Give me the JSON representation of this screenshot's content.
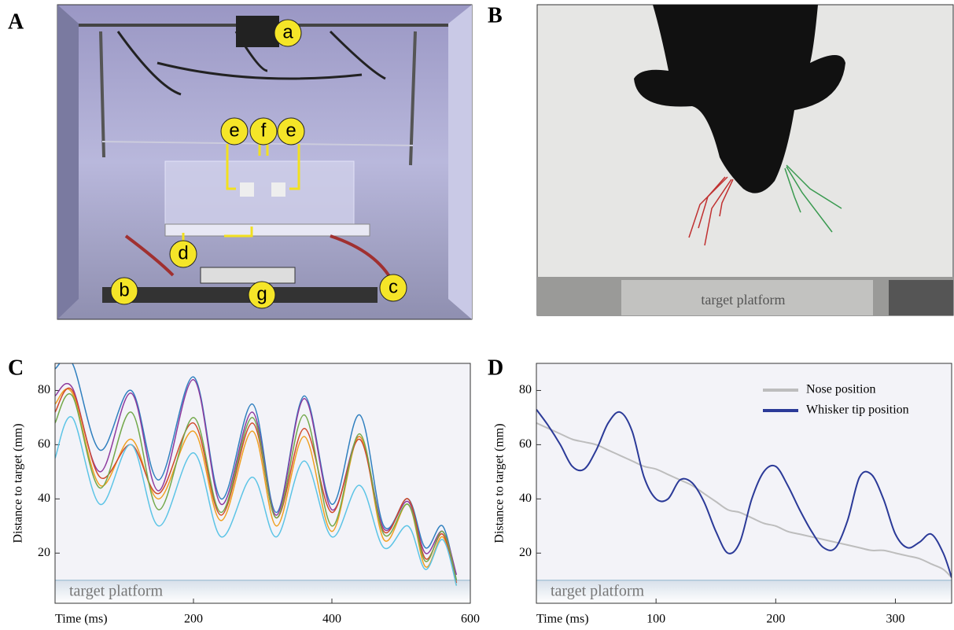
{
  "figure": {
    "panels": [
      "A",
      "B",
      "C",
      "D"
    ],
    "photo_a_labels": [
      "a",
      "b",
      "c",
      "d",
      "e",
      "f",
      "e",
      "g"
    ],
    "photo_b_label": "target platform"
  },
  "chart_data": [
    {
      "type": "line",
      "xlabel": "Time (ms)",
      "ylabel": "Distance to target  (mm)",
      "annotation": "target platform",
      "platform_level": 10,
      "xlim": [
        0,
        600
      ],
      "ylim": [
        1.5,
        90
      ],
      "xticks": [
        200,
        400,
        600
      ],
      "yticks": [
        20,
        40,
        60,
        80
      ],
      "x": [
        0,
        25,
        65,
        110,
        150,
        200,
        240,
        285,
        320,
        360,
        400,
        440,
        475,
        510,
        535,
        560,
        580
      ],
      "series": [
        {
          "color": "#2f7fbf",
          "values": [
            88,
            90,
            58,
            80,
            47,
            85,
            40,
            75,
            35,
            78,
            38,
            71,
            30,
            40,
            22,
            30,
            10
          ]
        },
        {
          "color": "#8e3a9e",
          "values": [
            78,
            81,
            50,
            79,
            43,
            84,
            38,
            72,
            34,
            77,
            36,
            63,
            29,
            39,
            20,
            28,
            12
          ]
        },
        {
          "color": "#f0a020",
          "values": [
            75,
            79,
            45,
            62,
            40,
            65,
            32,
            65,
            30,
            63,
            28,
            63,
            25,
            38,
            15,
            26,
            8
          ]
        },
        {
          "color": "#d04a2a",
          "values": [
            72,
            80,
            48,
            60,
            42,
            68,
            34,
            68,
            33,
            66,
            35,
            62,
            28,
            40,
            18,
            27,
            9
          ]
        },
        {
          "color": "#72a84a",
          "values": [
            68,
            78,
            44,
            72,
            36,
            70,
            35,
            70,
            33,
            71,
            30,
            64,
            27,
            38,
            17,
            28,
            10
          ]
        },
        {
          "color": "#5cc4e6",
          "values": [
            55,
            70,
            38,
            60,
            30,
            57,
            26,
            48,
            26,
            54,
            26,
            45,
            22,
            30,
            14,
            25,
            8
          ]
        }
      ]
    },
    {
      "type": "line",
      "xlabel": "Time (ms)",
      "ylabel": "Distance to target  (mm)",
      "annotation": "target platform",
      "platform_level": 10,
      "xlim": [
        0,
        347
      ],
      "ylim": [
        1.5,
        90
      ],
      "xticks": [
        100,
        200,
        300
      ],
      "yticks": [
        20,
        40,
        60,
        80
      ],
      "legend": "upper right",
      "x": [
        0,
        10,
        20,
        30,
        40,
        50,
        60,
        70,
        80,
        90,
        100,
        110,
        120,
        130,
        140,
        150,
        160,
        170,
        180,
        190,
        200,
        210,
        220,
        230,
        240,
        250,
        260,
        270,
        280,
        290,
        300,
        310,
        320,
        330,
        340,
        347
      ],
      "series": [
        {
          "name": "Nose position",
          "color": "#bdbdbd",
          "values": [
            68,
            66,
            64,
            62,
            61,
            60,
            58,
            56,
            54,
            52,
            51,
            49,
            47,
            45,
            42,
            39,
            36,
            35,
            33,
            31,
            30,
            28,
            27,
            26,
            25,
            24,
            23,
            22,
            21,
            21,
            20,
            19,
            18,
            16,
            14,
            11
          ]
        },
        {
          "name": "Whisker tip position",
          "color": "#2b3a98",
          "values": [
            73,
            67,
            60,
            52,
            51,
            58,
            68,
            72,
            65,
            48,
            40,
            40,
            47,
            46,
            39,
            28,
            20,
            24,
            40,
            50,
            52,
            45,
            36,
            28,
            22,
            22,
            32,
            48,
            49,
            40,
            27,
            22,
            24,
            27,
            20,
            11
          ]
        }
      ]
    }
  ]
}
